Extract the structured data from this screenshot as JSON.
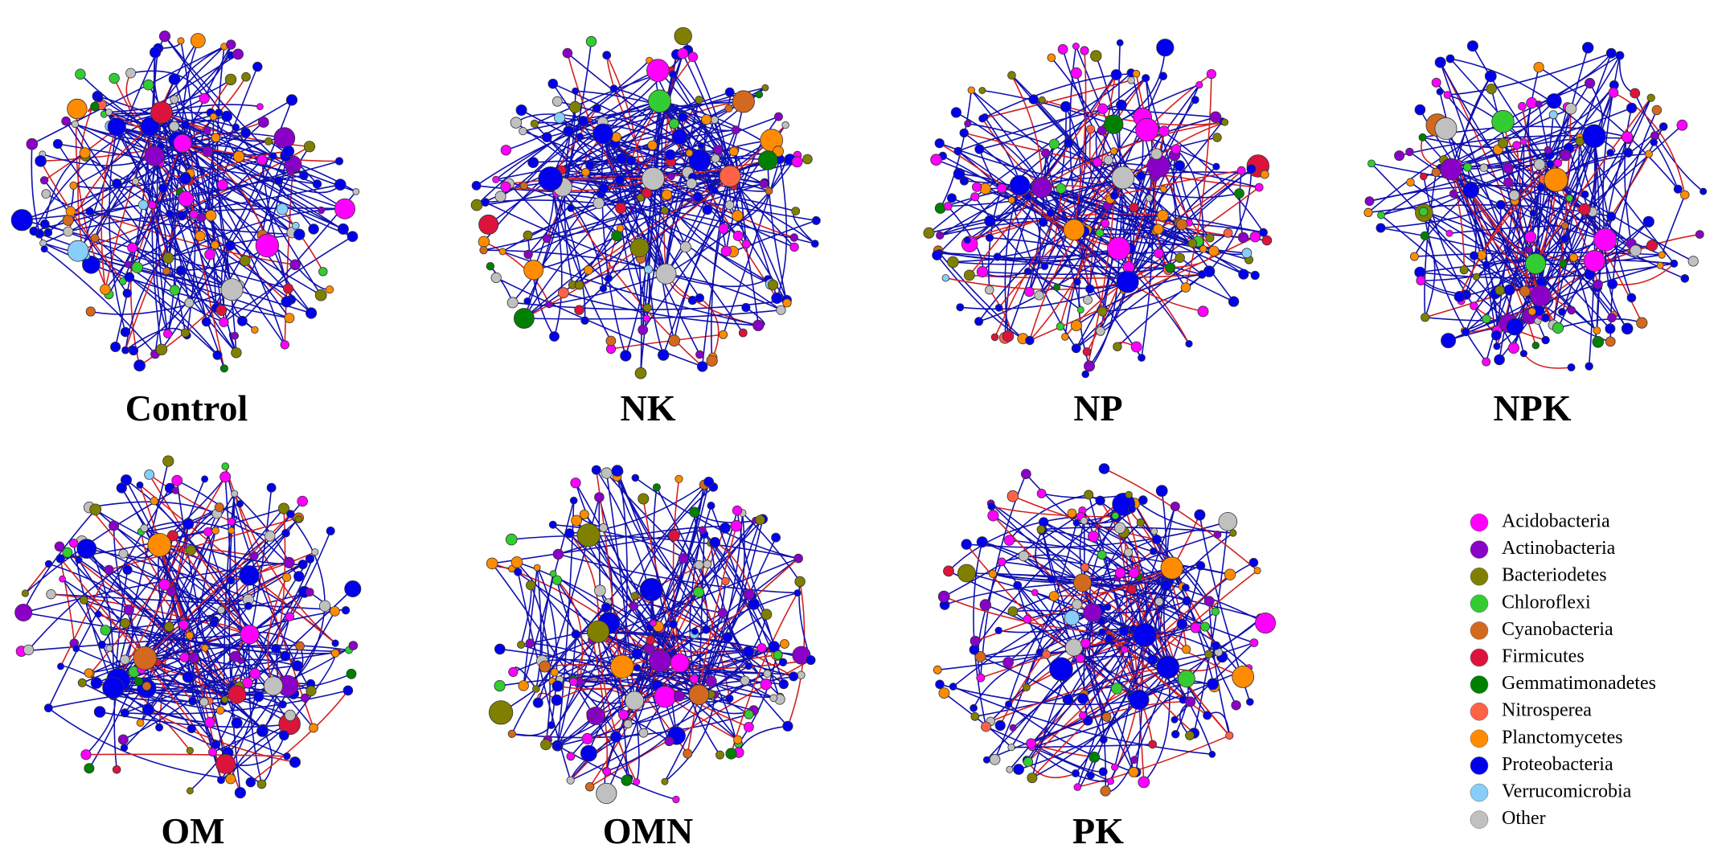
{
  "panels": [
    {
      "label": "Control"
    },
    {
      "label": "NK"
    },
    {
      "label": "NP"
    },
    {
      "label": "NPK"
    },
    {
      "label": "OM"
    },
    {
      "label": "OMN"
    },
    {
      "label": "PK"
    }
  ],
  "legend": {
    "items": [
      {
        "name": "Acidobacteria",
        "color": "#ff00ff"
      },
      {
        "name": "Actinobacteria",
        "color": "#8b00c8"
      },
      {
        "name": "Bacteriodetes",
        "color": "#808000"
      },
      {
        "name": "Chloroflexi",
        "color": "#33cc33"
      },
      {
        "name": "Cyanobacteria",
        "color": "#d2691e"
      },
      {
        "name": "Firmicutes",
        "color": "#dc143c"
      },
      {
        "name": "Gemmatimonadetes",
        "color": "#008000"
      },
      {
        "name": "Nitrosperea",
        "color": "#ff6347"
      },
      {
        "name": "Planctomycetes",
        "color": "#ff8c00"
      },
      {
        "name": "Proteobacteria",
        "color": "#0000ee"
      },
      {
        "name": "Verrucomicrobia",
        "color": "#87cefa"
      },
      {
        "name": "Other",
        "color": "#c0c0c0"
      }
    ]
  }
}
